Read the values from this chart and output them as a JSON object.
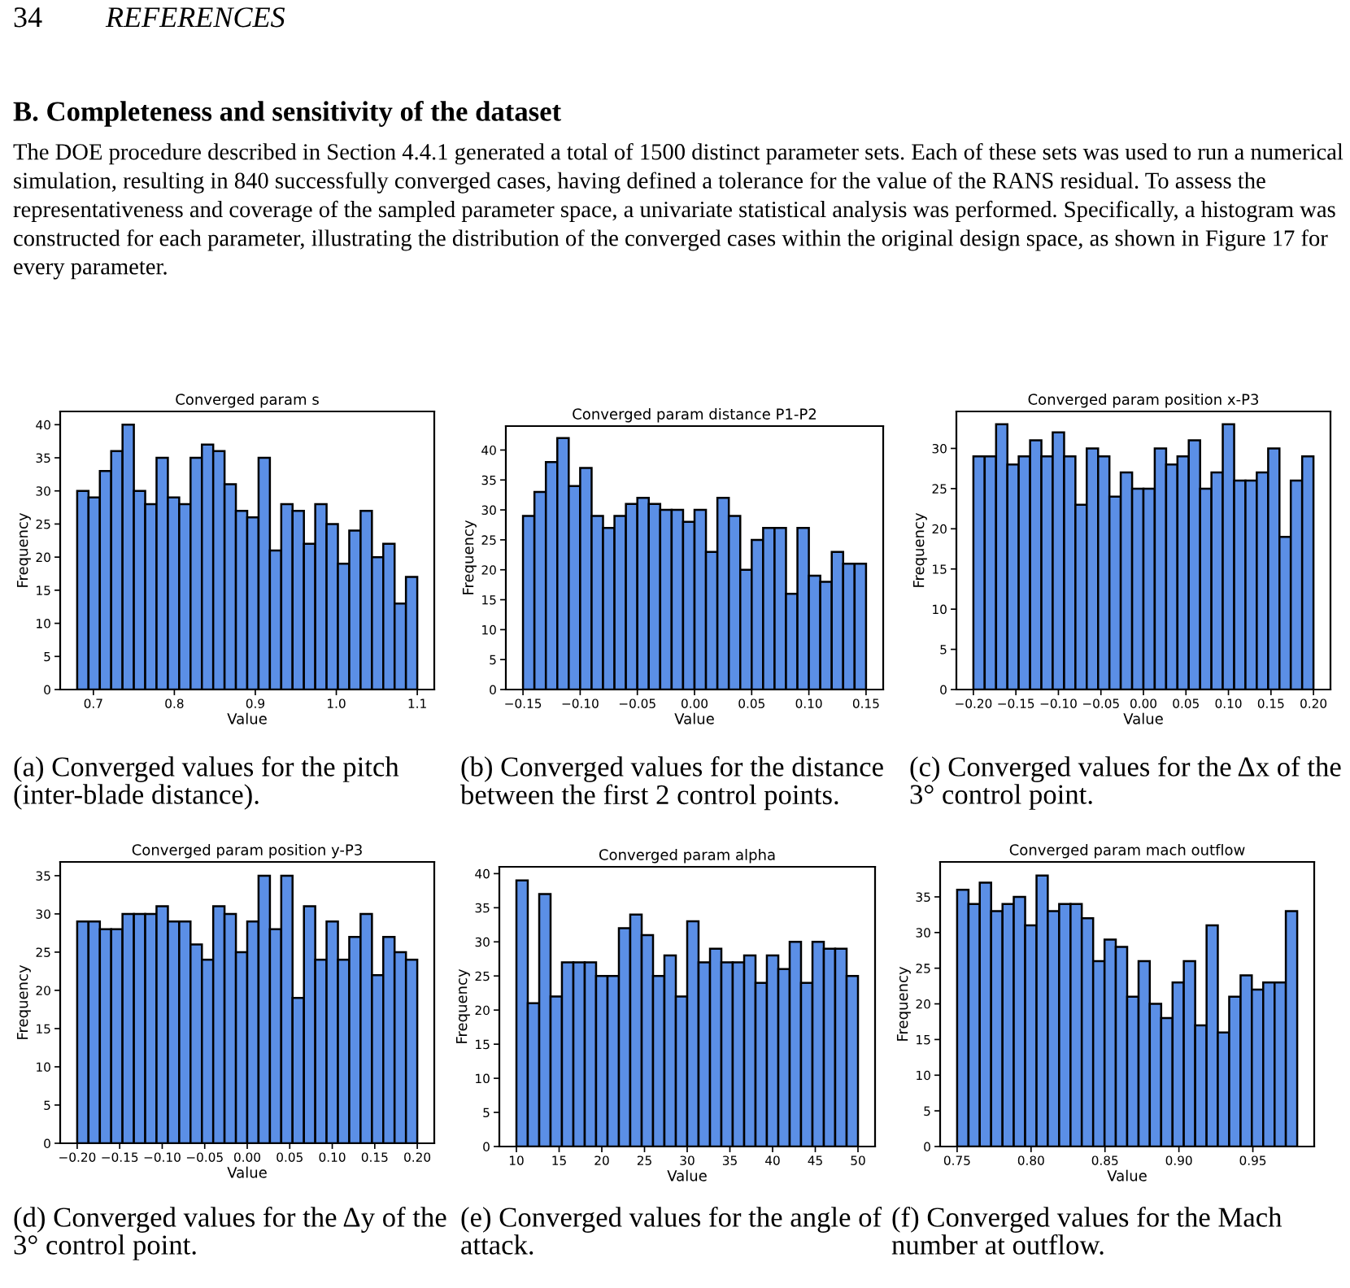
{
  "chart_data": [
    {
      "type": "other",
      "title": "B. Completeness and sensitivity of the dataset",
      "annotations": [
        "34",
        "REFERENCES",
        "The DOE procedure described in Section 4.4.1 generated a total of 1500 distinct parameter sets. Each of these sets was used to run a numerical simulation, resulting in 840 successfully converged cases, having defined a tolerance for the value of the RANS residual. To assess the representativeness and coverage of the sampled parameter space, a univariate statistical analysis was performed. Specifically, a histogram was constructed for each parameter, illustrating the distribution of the converged cases within the original design space, as shown in Figure 17 for every parameter."
      ]
    },
    {
      "type": "histogram",
      "title": "Converged param s",
      "xlabel": "Value",
      "ylabel": "Frequency",
      "color": "#5b8fe6",
      "grid": false,
      "bins": [
        0.68,
        0.694,
        0.708,
        0.722,
        0.736,
        0.75,
        0.764,
        0.778,
        0.792,
        0.806,
        0.82,
        0.834,
        0.848,
        0.862,
        0.876,
        0.89,
        0.904,
        0.918,
        0.932,
        0.946,
        0.96,
        0.974,
        0.988,
        1.002,
        1.016,
        1.03,
        1.044,
        1.058,
        1.072,
        1.086,
        1.1
      ],
      "values": [
        30,
        29,
        33,
        36,
        40,
        30,
        28,
        35,
        29,
        28,
        35,
        37,
        36,
        31,
        27,
        26,
        35,
        21,
        28,
        27,
        22,
        28,
        25,
        19,
        24,
        27,
        20,
        22,
        13,
        17
      ],
      "xlim": [
        0.659,
        1.121
      ],
      "ylim": [
        0,
        42
      ],
      "xticks": [
        0.7,
        0.8,
        0.9,
        {
          "value": 1,
          "label": "1.0"
        },
        1.1
      ],
      "yticks": [
        0,
        5,
        10,
        15,
        20,
        25,
        30,
        35,
        40
      ],
      "annotations": [
        "(a) Converged values for the pitch (inter-blade distance)."
      ]
    },
    {
      "type": "histogram",
      "title": "Converged param distance P1-P2",
      "xlabel": "Value",
      "ylabel": "Frequency",
      "color": "#5b8fe6",
      "grid": false,
      "bins": [
        -0.15,
        -0.14,
        -0.13,
        -0.12,
        -0.11,
        -0.1,
        -0.09,
        -0.08,
        -0.07,
        -0.06,
        -0.05,
        -0.04,
        -0.03,
        -0.02,
        -0.01,
        0,
        0.01,
        0.02,
        0.03,
        0.04,
        0.05,
        0.06,
        0.07,
        0.08,
        0.09,
        0.1,
        0.11,
        0.12,
        0.13,
        0.14,
        0.15
      ],
      "values": [
        29,
        33,
        38,
        42,
        34,
        37,
        29,
        27,
        29,
        31,
        32,
        31,
        30,
        30,
        28,
        30,
        23,
        32,
        29,
        20,
        25,
        27,
        27,
        16,
        27,
        19,
        18,
        23,
        21,
        21
      ],
      "xlim": [
        -0.165,
        0.165
      ],
      "ylim": [
        0,
        44
      ],
      "xticks": [
        {
          "value": -0.15,
          "label": "−0.15"
        },
        {
          "value": -0.1,
          "label": "−0.10"
        },
        {
          "value": -0.05,
          "label": "−0.05"
        },
        {
          "value": 0,
          "label": "0.00"
        },
        {
          "value": 0.05,
          "label": "0.05"
        },
        {
          "value": 0.1,
          "label": "0.10"
        },
        {
          "value": 0.15,
          "label": "0.15"
        }
      ],
      "yticks": [
        0,
        5,
        10,
        15,
        20,
        25,
        30,
        35,
        40
      ],
      "annotations": [
        "(b) Converged values for the distance between the first 2 control points."
      ]
    },
    {
      "type": "histogram",
      "title": "Converged param position x-P3",
      "xlabel": "Value",
      "ylabel": "Frequency",
      "color": "#5b8fe6",
      "grid": false,
      "bins": [
        -0.2,
        -0.1867,
        -0.1733,
        -0.16,
        -0.1467,
        -0.1333,
        -0.12,
        -0.1067,
        -0.0933,
        -0.08,
        -0.0667,
        -0.0533,
        -0.04,
        -0.0267,
        -0.0133,
        0,
        0.0133,
        0.0267,
        0.04,
        0.0533,
        0.0667,
        0.08,
        0.0933,
        0.1067,
        0.12,
        0.1333,
        0.1467,
        0.16,
        0.1733,
        0.1867,
        0.2
      ],
      "values": [
        29,
        29,
        33,
        28,
        29,
        31,
        29,
        32,
        29,
        23,
        30,
        29,
        24,
        27,
        25,
        25,
        30,
        28,
        29,
        31,
        25,
        27,
        33,
        26,
        26,
        27,
        30,
        19,
        26,
        29
      ],
      "xlim": [
        -0.22,
        0.22
      ],
      "ylim": [
        0,
        34.6
      ],
      "xticks": [
        {
          "value": -0.2,
          "label": "−0.20"
        },
        {
          "value": -0.15,
          "label": "−0.15"
        },
        {
          "value": -0.1,
          "label": "−0.10"
        },
        {
          "value": -0.05,
          "label": "−0.05"
        },
        {
          "value": 0,
          "label": "0.00"
        },
        {
          "value": 0.05,
          "label": "0.05"
        },
        {
          "value": 0.1,
          "label": "0.10"
        },
        {
          "value": 0.15,
          "label": "0.15"
        },
        {
          "value": 0.2,
          "label": "0.20"
        }
      ],
      "yticks": [
        0,
        5,
        10,
        15,
        20,
        25,
        30
      ],
      "annotations": [
        "(c) Converged values for the Δx of the 3° control point."
      ]
    },
    {
      "type": "histogram",
      "title": "Converged param position y-P3",
      "xlabel": "Value",
      "ylabel": "Frequency",
      "color": "#5b8fe6",
      "grid": false,
      "bins": [
        -0.2,
        -0.1867,
        -0.1733,
        -0.16,
        -0.1467,
        -0.1333,
        -0.12,
        -0.1067,
        -0.0933,
        -0.08,
        -0.0667,
        -0.0533,
        -0.04,
        -0.0267,
        -0.0133,
        0,
        0.0133,
        0.0267,
        0.04,
        0.0533,
        0.0667,
        0.08,
        0.0933,
        0.1067,
        0.12,
        0.1333,
        0.1467,
        0.16,
        0.1733,
        0.1867,
        0.2
      ],
      "values": [
        29,
        29,
        28,
        28,
        30,
        30,
        30,
        31,
        29,
        29,
        26,
        24,
        31,
        30,
        25,
        29,
        35,
        28,
        35,
        19,
        31,
        24,
        29,
        24,
        27,
        30,
        22,
        27,
        25,
        24
      ],
      "xlim": [
        -0.22,
        0.22
      ],
      "ylim": [
        0,
        36.8
      ],
      "xticks": [
        {
          "value": -0.2,
          "label": "−0.20"
        },
        {
          "value": -0.15,
          "label": "−0.15"
        },
        {
          "value": -0.1,
          "label": "−0.10"
        },
        {
          "value": -0.05,
          "label": "−0.05"
        },
        {
          "value": 0,
          "label": "0.00"
        },
        {
          "value": 0.05,
          "label": "0.05"
        },
        {
          "value": 0.1,
          "label": "0.10"
        },
        {
          "value": 0.15,
          "label": "0.15"
        },
        {
          "value": 0.2,
          "label": "0.20"
        }
      ],
      "yticks": [
        0,
        5,
        10,
        15,
        20,
        25,
        30,
        35
      ],
      "annotations": [
        "(d) Converged values for the Δy of the 3° control point."
      ]
    },
    {
      "type": "histogram",
      "title": "Converged param alpha",
      "xlabel": "Value",
      "ylabel": "Frequency",
      "color": "#5b8fe6",
      "grid": false,
      "bins": [
        10,
        11.33,
        12.67,
        14,
        15.33,
        16.67,
        18,
        19.33,
        20.67,
        22,
        23.33,
        24.67,
        26,
        27.33,
        28.67,
        30,
        31.33,
        32.67,
        34,
        35.33,
        36.67,
        38,
        39.33,
        40.67,
        42,
        43.33,
        44.67,
        46,
        47.33,
        48.67,
        50
      ],
      "values": [
        39,
        21,
        37,
        22,
        27,
        27,
        27,
        25,
        25,
        32,
        34,
        31,
        25,
        28,
        22,
        33,
        27,
        29,
        27,
        27,
        28,
        24,
        28,
        26,
        30,
        24,
        30,
        29,
        29,
        25
      ],
      "xlim": [
        8,
        52
      ],
      "ylim": [
        0,
        41
      ],
      "xticks": [
        10,
        15,
        20,
        25,
        30,
        35,
        40,
        45,
        50
      ],
      "yticks": [
        0,
        5,
        10,
        15,
        20,
        25,
        30,
        35,
        40
      ],
      "annotations": [
        "(e) Converged values for the angle of attack."
      ]
    },
    {
      "type": "histogram",
      "title": "Converged param mach outflow",
      "xlabel": "Value",
      "ylabel": "Frequency",
      "color": "#5b8fe6",
      "grid": false,
      "bins": [
        0.75,
        0.7577,
        0.7653,
        0.773,
        0.7807,
        0.7883,
        0.796,
        0.8037,
        0.8113,
        0.819,
        0.8267,
        0.8343,
        0.842,
        0.8497,
        0.8573,
        0.865,
        0.8727,
        0.8803,
        0.888,
        0.8957,
        0.9033,
        0.911,
        0.9187,
        0.9263,
        0.934,
        0.9417,
        0.9493,
        0.957,
        0.9647,
        0.9723,
        0.98
      ],
      "values": [
        36,
        34,
        37,
        33,
        34,
        35,
        31,
        38,
        33,
        34,
        34,
        32,
        26,
        29,
        28,
        21,
        26,
        20,
        18,
        23,
        26,
        17,
        31,
        16,
        21,
        24,
        22,
        23,
        23,
        33
      ],
      "xlim": [
        0.7385,
        0.9915
      ],
      "ylim": [
        0,
        39.9
      ],
      "xticks": [
        0.75,
        {
          "value": 0.8,
          "label": "0.80"
        },
        0.85,
        {
          "value": 0.9,
          "label": "0.90"
        },
        0.95
      ],
      "yticks": [
        0,
        5,
        10,
        15,
        20,
        25,
        30,
        35
      ],
      "annotations": [
        "(f) Converged values for the Mach number at outflow."
      ]
    }
  ]
}
